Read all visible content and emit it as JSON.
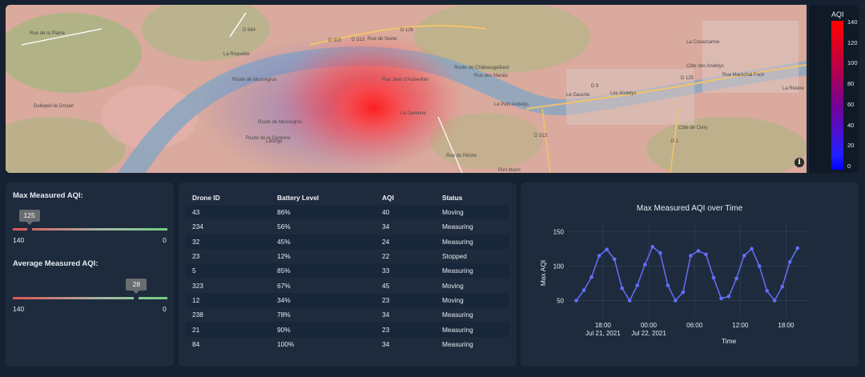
{
  "map": {
    "labels": [
      "Rue de la Plaine",
      "La Roquette",
      "Route de Mussegros",
      "D 664",
      "D 313",
      "Rue de Seine",
      "D 126",
      "Route de Mussegros",
      "Route de Châteaugaillard",
      "Rue Jean d'Aubeviller",
      "Rue des Marais",
      "Le Petit Andelys",
      "D 9",
      "Les Andelys",
      "D 125",
      "Côte des Andelys",
      "Rue Maréchal Foch",
      "La Rivière",
      "La Couarcanne",
      "Dollepet-Ile Drouet",
      "Route de la Garenne",
      "La Garenne",
      "Lafarge",
      "D 313",
      "Port Morin",
      "D 1",
      "Côte de Cléry",
      "D 313",
      "Le Gauche",
      "Rue du Pêche"
    ],
    "info_glyph": "i"
  },
  "colorbar": {
    "title": "AQI",
    "ticks": [
      "140",
      "120",
      "100",
      "80",
      "60",
      "40",
      "20",
      "0"
    ]
  },
  "gauges": {
    "max": {
      "label": "Max Measured AQI:",
      "value": "125",
      "value_fraction": 0.107,
      "min_label": "140",
      "max_label": "0"
    },
    "avg": {
      "label": "Average Measured AQI:",
      "value": "28",
      "value_fraction": 0.8,
      "min_label": "140",
      "max_label": "0"
    }
  },
  "table": {
    "headers": [
      "Drone ID",
      "Battery Level",
      "AQI",
      "Status"
    ],
    "rows": [
      [
        "43",
        "86%",
        "40",
        "Moving"
      ],
      [
        "234",
        "56%",
        "34",
        "Measuring"
      ],
      [
        "32",
        "45%",
        "24",
        "Measuring"
      ],
      [
        "23",
        "12%",
        "22",
        "Stopped"
      ],
      [
        "5",
        "85%",
        "33",
        "Measuring"
      ],
      [
        "323",
        "67%",
        "45",
        "Moving"
      ],
      [
        "12",
        "34%",
        "23",
        "Moving"
      ],
      [
        "238",
        "78%",
        "34",
        "Measuring"
      ],
      [
        "21",
        "90%",
        "23",
        "Measuring"
      ],
      [
        "84",
        "100%",
        "34",
        "Measuring"
      ]
    ]
  },
  "colors": {
    "line": "#636efa",
    "card": "#1e2b3d",
    "background": "#162131"
  },
  "chart_data": {
    "type": "line",
    "title": "Max Measured AQI over Time",
    "xlabel": "Time",
    "ylabel": "Max AQI",
    "ylim": [
      25,
      155
    ],
    "yticks": [
      50,
      100,
      150
    ],
    "x_tick_labels": [
      {
        "x": 1.5,
        "line1": "18:00",
        "line2": "Jul 21, 2021"
      },
      {
        "x": 7.5,
        "line1": "00:00",
        "line2": "Jul 22, 2021"
      },
      {
        "x": 13.5,
        "line1": "06:00",
        "line2": ""
      },
      {
        "x": 19.5,
        "line1": "12:00",
        "line2": ""
      },
      {
        "x": 25.5,
        "line1": "18:00",
        "line2": ""
      }
    ],
    "x": [
      -2,
      -1,
      0,
      1,
      2,
      3,
      4,
      5,
      6,
      7,
      8,
      9,
      10,
      11,
      12,
      13,
      14,
      15,
      16,
      17,
      18,
      19,
      20,
      21,
      22,
      23,
      24,
      25,
      26,
      27
    ],
    "values": [
      50,
      65,
      84,
      115,
      124,
      110,
      68,
      50,
      72,
      102,
      128,
      119,
      72,
      50,
      62,
      115,
      122,
      117,
      83,
      53,
      56,
      82,
      115,
      125,
      100,
      64,
      50,
      70,
      106,
      126
    ],
    "grid": true
  }
}
